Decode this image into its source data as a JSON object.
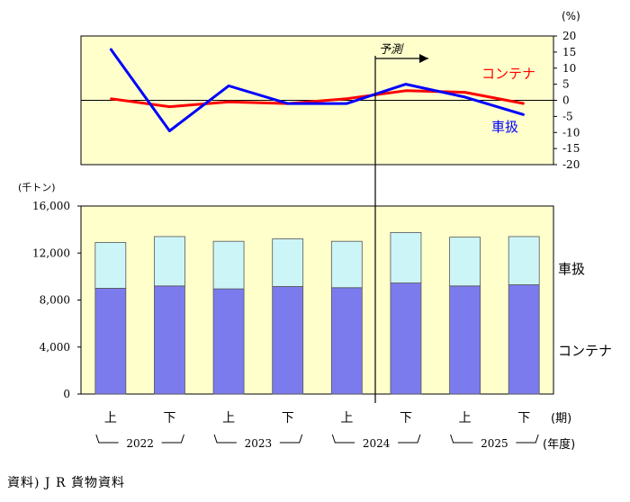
{
  "chart_data": [
    {
      "type": "line",
      "unit": "(%)",
      "x": [
        "2022上",
        "2022下",
        "2023上",
        "2023下",
        "2024上",
        "2024下",
        "2025上",
        "2025下"
      ],
      "series": [
        {
          "name": "コンテナ",
          "color": "#ff0000",
          "values": [
            0.5,
            -2.0,
            -0.5,
            -1.0,
            0.5,
            3.0,
            2.5,
            -1.0
          ]
        },
        {
          "name": "車扱",
          "color": "#0000ff",
          "values": [
            16.0,
            -9.5,
            4.5,
            -1.0,
            -1.0,
            5.0,
            1.0,
            -4.5
          ]
        }
      ],
      "ylim": [
        -20,
        20
      ],
      "yticks": [
        20,
        15,
        10,
        5,
        0,
        -5,
        -10,
        -15,
        -20
      ],
      "forecast_label": "予測",
      "background": "#ffffcc"
    },
    {
      "type": "bar",
      "stacked": true,
      "unit": "(千トン)",
      "categories": [
        "上",
        "下",
        "上",
        "下",
        "上",
        "下",
        "上",
        "下"
      ],
      "series": [
        {
          "name": "コンテナ",
          "color": "#7b7bee",
          "values": [
            9000,
            9200,
            8950,
            9150,
            9050,
            9450,
            9200,
            9300
          ]
        },
        {
          "name": "車扱",
          "color": "#ccf5f8",
          "values": [
            3900,
            4200,
            4050,
            4050,
            3950,
            4300,
            4150,
            4100
          ]
        }
      ],
      "ylim": [
        0,
        16000
      ],
      "yticks": [
        "16,000",
        "12,000",
        "8,000",
        "4,000",
        "0"
      ],
      "ytick_values": [
        16000,
        12000,
        8000,
        4000,
        0
      ],
      "period_label": "(期)",
      "year_label": "(年度)",
      "years": [
        "2022",
        "2023",
        "2024",
        "2025"
      ],
      "background": "#ffffcc"
    }
  ],
  "source": "資料)  J R 貨物資料"
}
